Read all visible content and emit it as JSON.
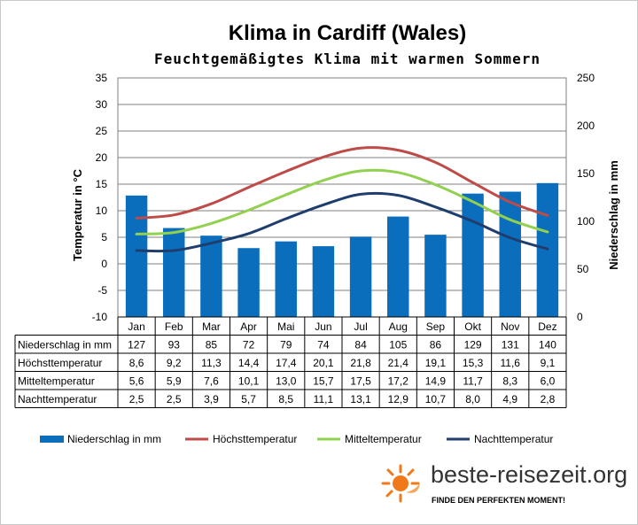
{
  "title": "Klima in Cardiff (Wales)",
  "subtitle": "Feuchtgemäßigtes Klima mit warmen Sommern",
  "brand": {
    "name": "beste-reisezeit.org",
    "tagline": "FINDE DEN PERFEKTEN MOMENT!"
  },
  "colors": {
    "precip": "#0a6ebd",
    "high": "#be4b48",
    "mean": "#92d050",
    "night": "#1f3e6d"
  },
  "chart_data": {
    "type": "bar",
    "title": "Klima in Cardiff (Wales)",
    "subtitle": "Feuchtgemäßigtes Klima mit warmen Sommern",
    "categories": [
      "Jan",
      "Feb",
      "Mar",
      "Apr",
      "Mai",
      "Jun",
      "Jul",
      "Aug",
      "Sep",
      "Okt",
      "Nov",
      "Dez"
    ],
    "ylabel_left": "Temperatur in °C",
    "ylabel_right": "Niederschlag in mm",
    "ylim_left": [
      -10,
      35
    ],
    "ylim_right": [
      0,
      250
    ],
    "yticks_left": [
      "35",
      "30",
      "25",
      "20",
      "15",
      "10",
      "5",
      "0",
      "-5",
      "-10"
    ],
    "yticks_right": [
      "250",
      "200",
      "150",
      "100",
      "50",
      "0"
    ],
    "legend_position": "bottom",
    "series": [
      {
        "name": "Niederschlag in mm",
        "type": "bar",
        "axis": "right",
        "values": [
          127,
          93,
          85,
          72,
          79,
          74,
          84,
          105,
          86,
          129,
          131,
          140
        ],
        "labels": [
          "127",
          "93",
          "85",
          "72",
          "79",
          "74",
          "84",
          "105",
          "86",
          "129",
          "131",
          "140"
        ]
      },
      {
        "name": "Höchsttemperatur",
        "type": "line",
        "axis": "left",
        "values": [
          8.6,
          9.2,
          11.3,
          14.4,
          17.4,
          20.1,
          21.8,
          21.4,
          19.1,
          15.3,
          11.6,
          9.1
        ],
        "labels": [
          "8,6",
          "9,2",
          "11,3",
          "14,4",
          "17,4",
          "20,1",
          "21,8",
          "21,4",
          "19,1",
          "15,3",
          "11,6",
          "9,1"
        ]
      },
      {
        "name": "Mitteltemperatur",
        "type": "line",
        "axis": "left",
        "values": [
          5.6,
          5.9,
          7.6,
          10.1,
          13.0,
          15.7,
          17.5,
          17.2,
          14.9,
          11.7,
          8.3,
          6.0
        ],
        "labels": [
          "5,6",
          "5,9",
          "7,6",
          "10,1",
          "13,0",
          "15,7",
          "17,5",
          "17,2",
          "14,9",
          "11,7",
          "8,3",
          "6,0"
        ]
      },
      {
        "name": "Nachttemperatur",
        "type": "line",
        "axis": "left",
        "values": [
          2.5,
          2.5,
          3.9,
          5.7,
          8.5,
          11.1,
          13.1,
          12.9,
          10.7,
          8.0,
          4.9,
          2.8
        ],
        "labels": [
          "2,5",
          "2,5",
          "3,9",
          "5,7",
          "8,5",
          "11,1",
          "13,1",
          "12,9",
          "10,7",
          "8,0",
          "4,9",
          "2,8"
        ]
      }
    ]
  }
}
